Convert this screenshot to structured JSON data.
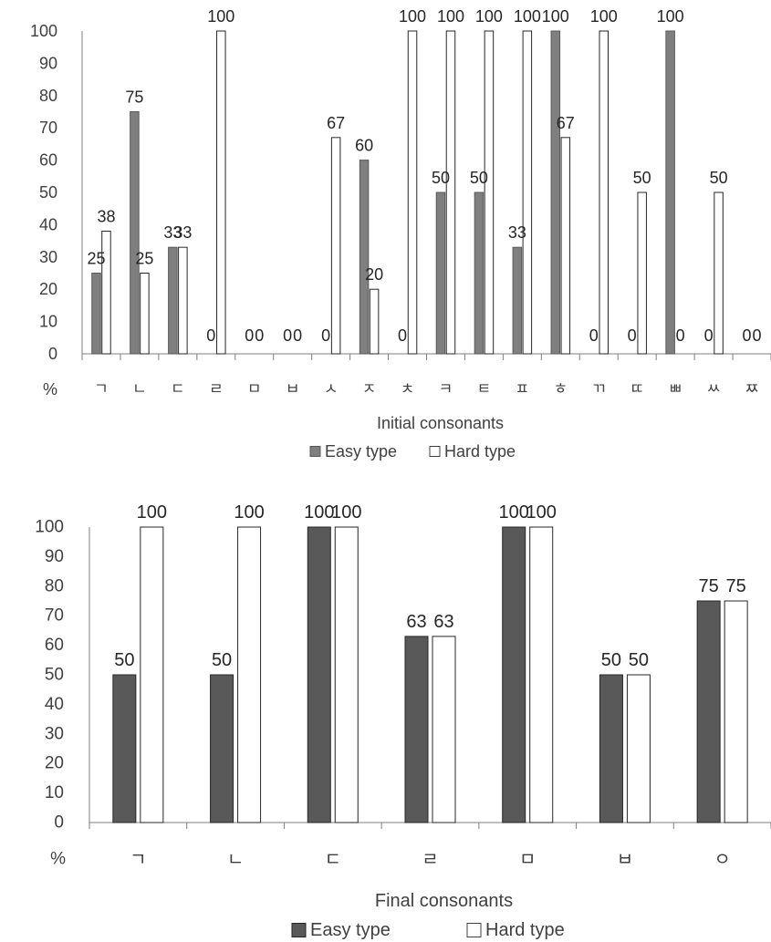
{
  "chart_data": [
    {
      "type": "bar",
      "title": "",
      "unit_label": "%",
      "xlabel": "Initial consonants",
      "ylabel": "%",
      "ylim": [
        0,
        100
      ],
      "yticks": [
        0,
        10,
        20,
        30,
        40,
        50,
        60,
        70,
        80,
        90,
        100
      ],
      "categories": [
        "ㄱ",
        "ㄴ",
        "ㄷ",
        "ㄹ",
        "ㅁ",
        "ㅂ",
        "ㅅ",
        "ㅈ",
        "ㅊ",
        "ㅋ",
        "ㅌ",
        "ㅍ",
        "ㅎ",
        "ㄲ",
        "ㄸ",
        "ㅃ",
        "ㅆ",
        "ㅉ"
      ],
      "series": [
        {
          "name": "Easy type",
          "color": "#7f7f7f",
          "labels": [
            "25",
            "75",
            "33",
            "0",
            "0",
            "0",
            "0",
            "60",
            "0",
            "50",
            "50",
            "33",
            "100",
            "0",
            "0",
            "100",
            "0",
            "0"
          ],
          "values": [
            25,
            75,
            33,
            0,
            0,
            0,
            0,
            60,
            0,
            50,
            50,
            33,
            100,
            0,
            0,
            100,
            0,
            0
          ]
        },
        {
          "name": "Hard type",
          "color": "#ffffff",
          "labels": [
            "38",
            "25",
            "33",
            "100",
            "0",
            "0",
            "67",
            "20",
            "100",
            "100",
            "100",
            "100",
            "67",
            "100",
            "50",
            "0",
            "50",
            "0"
          ],
          "values": [
            38,
            25,
            33,
            100,
            0,
            0,
            67,
            20,
            100,
            100,
            100,
            100,
            67,
            100,
            50,
            0,
            50,
            0
          ]
        }
      ],
      "legend": [
        "Easy type",
        "Hard type"
      ]
    },
    {
      "type": "bar",
      "title": "",
      "unit_label": "%",
      "xlabel": "Final consonants",
      "ylabel": "%",
      "ylim": [
        0,
        100
      ],
      "yticks": [
        0,
        10,
        20,
        30,
        40,
        50,
        60,
        70,
        80,
        90,
        100
      ],
      "categories": [
        "ㄱ",
        "ㄴ",
        "ㄷ",
        "ㄹ",
        "ㅁ",
        "ㅂ",
        "ㅇ"
      ],
      "series": [
        {
          "name": "Easy type",
          "color": "#595959",
          "labels": [
            "50",
            "50",
            "100",
            "63",
            "100",
            "50",
            "75"
          ],
          "values": [
            50,
            50,
            100,
            63,
            100,
            50,
            75
          ]
        },
        {
          "name": "Hard type",
          "color": "#ffffff",
          "labels": [
            "100",
            "100",
            "100",
            "63",
            "100",
            "50",
            "75"
          ],
          "values": [
            100,
            100,
            100,
            63,
            100,
            50,
            75
          ]
        }
      ],
      "legend": [
        "Easy type",
        "Hard type"
      ]
    }
  ]
}
